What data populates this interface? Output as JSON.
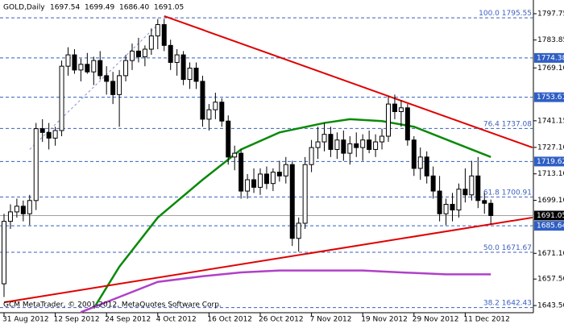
{
  "chart_data": {
    "type": "candlestick",
    "title": "GOLD,Daily",
    "header_values": [
      "1697.54",
      "1699.49",
      "1686.40",
      "1691.05"
    ],
    "copyright": "GCM MetaTrader, © 2001-2012, MetaQuotes Software Corp.",
    "categories": [
      "31 Aug 2012",
      null,
      null,
      null,
      null,
      null,
      null,
      null,
      "12 Sep 2012",
      null,
      null,
      null,
      null,
      null,
      null,
      null,
      "24 Sep 2012",
      null,
      null,
      null,
      null,
      null,
      null,
      null,
      "4 Oct 2012",
      null,
      null,
      null,
      null,
      null,
      null,
      null,
      "16 Oct 2012",
      null,
      null,
      null,
      null,
      null,
      null,
      null,
      "26 Oct 2012",
      null,
      null,
      null,
      null,
      null,
      null,
      null,
      "7 Nov 2012",
      null,
      null,
      null,
      null,
      null,
      null,
      null,
      "19 Nov 2012",
      null,
      null,
      null,
      null,
      null,
      null,
      null,
      "29 Nov 2012",
      null,
      null,
      null,
      null,
      null,
      null,
      null,
      "11 Dec 2012",
      null,
      null,
      null,
      null
    ],
    "open": [
      1655,
      1688,
      1693,
      1696,
      1692,
      1699,
      1737,
      1735,
      1732,
      1736,
      1770,
      1776,
      1768,
      1771,
      1767,
      1773,
      1765,
      1762,
      1755,
      1765,
      1773,
      1778,
      1775,
      1779,
      1786,
      1792,
      1781,
      1772,
      1776,
      1763,
      1769,
      1762,
      1742,
      1747,
      1751,
      1741,
      1722,
      1724,
      1704,
      1710,
      1706,
      1713,
      1708,
      1714,
      1712,
      1718,
      1679,
      1687,
      1718,
      1727,
      1730,
      1734,
      1726,
      1731,
      1724,
      1729,
      1727,
      1731,
      1726,
      1730,
      1733,
      1750,
      1746,
      1748,
      1731,
      1716,
      1722,
      1712,
      1704,
      1692,
      1697,
      1694,
      1705,
      1702,
      1712,
      1699,
      1697.54
    ],
    "high": [
      1692,
      1697,
      1700,
      1699,
      1702,
      1740,
      1742,
      1740,
      1738,
      1773,
      1780,
      1779,
      1774,
      1777,
      1775,
      1778,
      1770,
      1767,
      1768,
      1776,
      1782,
      1785,
      1781,
      1790,
      1795,
      1795,
      1784,
      1779,
      1778,
      1772,
      1772,
      1765,
      1750,
      1756,
      1753,
      1744,
      1728,
      1726,
      1713,
      1716,
      1716,
      1717,
      1716,
      1720,
      1722,
      1720,
      1690,
      1722,
      1731,
      1738,
      1740,
      1738,
      1735,
      1736,
      1733,
      1735,
      1734,
      1736,
      1734,
      1737,
      1754,
      1755,
      1752,
      1750,
      1733,
      1727,
      1725,
      1717,
      1712,
      1700,
      1703,
      1708,
      1716,
      1720,
      1722,
      1703,
      1699.49
    ],
    "low": [
      1648,
      1684,
      1690,
      1688,
      1686,
      1694,
      1730,
      1726,
      1728,
      1733,
      1765,
      1766,
      1762,
      1766,
      1760,
      1763,
      1755,
      1750,
      1738,
      1762,
      1768,
      1772,
      1770,
      1776,
      1779,
      1778,
      1768,
      1765,
      1760,
      1758,
      1758,
      1738,
      1736,
      1742,
      1738,
      1718,
      1715,
      1700,
      1700,
      1703,
      1702,
      1705,
      1704,
      1709,
      1708,
      1675,
      1672,
      1684,
      1714,
      1721,
      1725,
      1722,
      1721,
      1720,
      1718,
      1722,
      1720,
      1724,
      1722,
      1726,
      1730,
      1742,
      1738,
      1728,
      1712,
      1710,
      1708,
      1700,
      1688,
      1686,
      1688,
      1690,
      1698,
      1699,
      1695,
      1692,
      1686.4
    ],
    "close": [
      1688,
      1693,
      1696,
      1692,
      1699,
      1737,
      1735,
      1732,
      1736,
      1770,
      1776,
      1768,
      1771,
      1767,
      1773,
      1765,
      1762,
      1755,
      1765,
      1773,
      1778,
      1775,
      1779,
      1786,
      1792,
      1781,
      1772,
      1776,
      1763,
      1769,
      1762,
      1742,
      1747,
      1751,
      1741,
      1722,
      1724,
      1704,
      1710,
      1706,
      1713,
      1708,
      1714,
      1712,
      1718,
      1679,
      1687,
      1718,
      1727,
      1730,
      1734,
      1726,
      1731,
      1724,
      1729,
      1727,
      1731,
      1726,
      1730,
      1733,
      1750,
      1746,
      1748,
      1731,
      1716,
      1722,
      1712,
      1704,
      1692,
      1697,
      1694,
      1705,
      1702,
      1712,
      1699,
      1697.54,
      1691.05
    ],
    "ylim": [
      1639.7,
      1805
    ],
    "yticks": [
      1797.75,
      1783.85,
      {
        "value": 1769.1,
        "label": "1769.10"
      },
      1741.15,
      {
        "value": 1727.1,
        "label": "1727.10"
      },
      {
        "value": 1713.1,
        "label": "1713.10"
      },
      {
        "value": 1699.1,
        "label": "1699.10"
      },
      {
        "value": 1671.1,
        "label": "1671.10"
      },
      {
        "value": 1657.5,
        "label": "1657.50"
      },
      {
        "value": 1643.5,
        "label": "1643.50"
      }
    ],
    "price_levels": [
      {
        "value": 1774.38,
        "color": "#2f5fc4"
      },
      {
        "value": 1753.61,
        "color": "#2f5fc4"
      },
      {
        "value": 1719.62,
        "color": "#2f5fc4"
      },
      {
        "value": 1685.64,
        "color": "#2f5fc4"
      },
      {
        "value": 1691.05,
        "color": "#000000"
      }
    ],
    "fib_color": "#3a5fbf",
    "fib_levels": [
      {
        "level": "100.0",
        "value": 1795.55
      },
      {
        "level": 76.4,
        "value": 1737.08
      },
      {
        "level": 61.8,
        "value": 1700.91
      },
      {
        "level": "50.0",
        "value": 1671.67
      },
      {
        "level": 38.2,
        "value": 1642.43
      }
    ],
    "trendlines": [
      {
        "color": "#e00000",
        "x": [
          25,
          82.5
        ],
        "y": [
          1796.5,
          1727
        ]
      },
      {
        "color": "#e00000",
        "x": [
          0,
          82.5
        ],
        "y": [
          1645.2,
          1690
        ]
      },
      {
        "color": "#8095d0",
        "x": [
          4,
          24
        ],
        "y": [
          1726,
          1792
        ]
      }
    ],
    "moving_averages": [
      {
        "color": "#0a8a0a",
        "x": [
          14,
          18,
          24,
          31,
          37,
          43,
          50,
          54,
          59,
          64,
          70,
          76
        ],
        "values": [
          1642,
          1664,
          1690,
          1710,
          1726,
          1735,
          1740,
          1742,
          1741,
          1738,
          1730,
          1722
        ]
      },
      {
        "color": "#b040c8",
        "x": [
          12,
          18,
          24,
          31,
          37,
          43,
          50,
          56,
          62,
          69,
          76
        ],
        "values": [
          1640,
          1648,
          1656,
          1659,
          1661,
          1662,
          1662,
          1662,
          1661,
          1660,
          1660
        ]
      }
    ]
  }
}
